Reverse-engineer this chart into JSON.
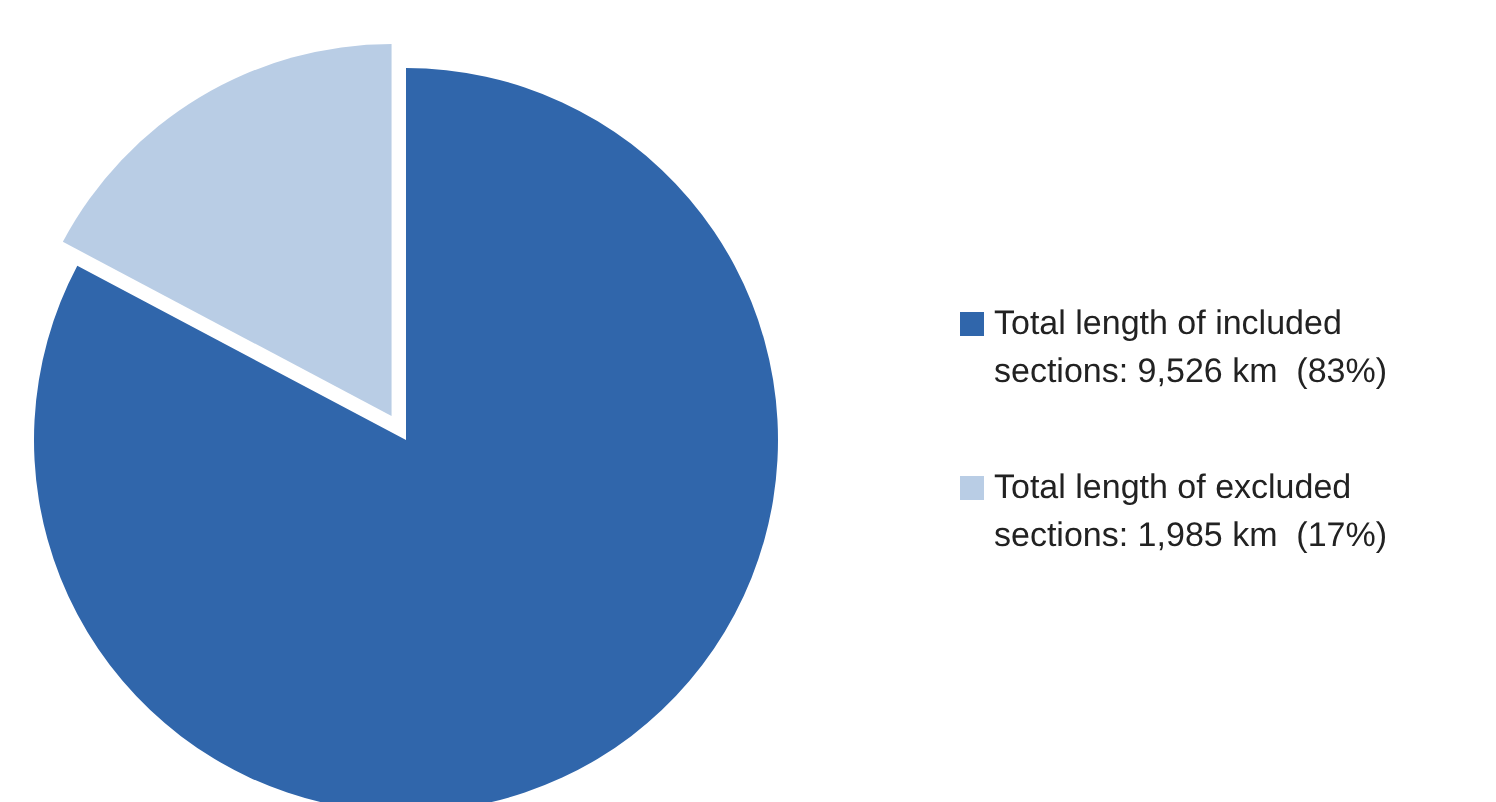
{
  "chart_data": {
    "type": "pie",
    "categories": [
      "Total length of included sections: 9,526 km  (83%)",
      "Total length of excluded sections: 1,985 km  (17%)"
    ],
    "values": [
      9526,
      1985
    ],
    "colors": [
      "#3066ab",
      "#b9cde5"
    ],
    "legend": "right"
  }
}
